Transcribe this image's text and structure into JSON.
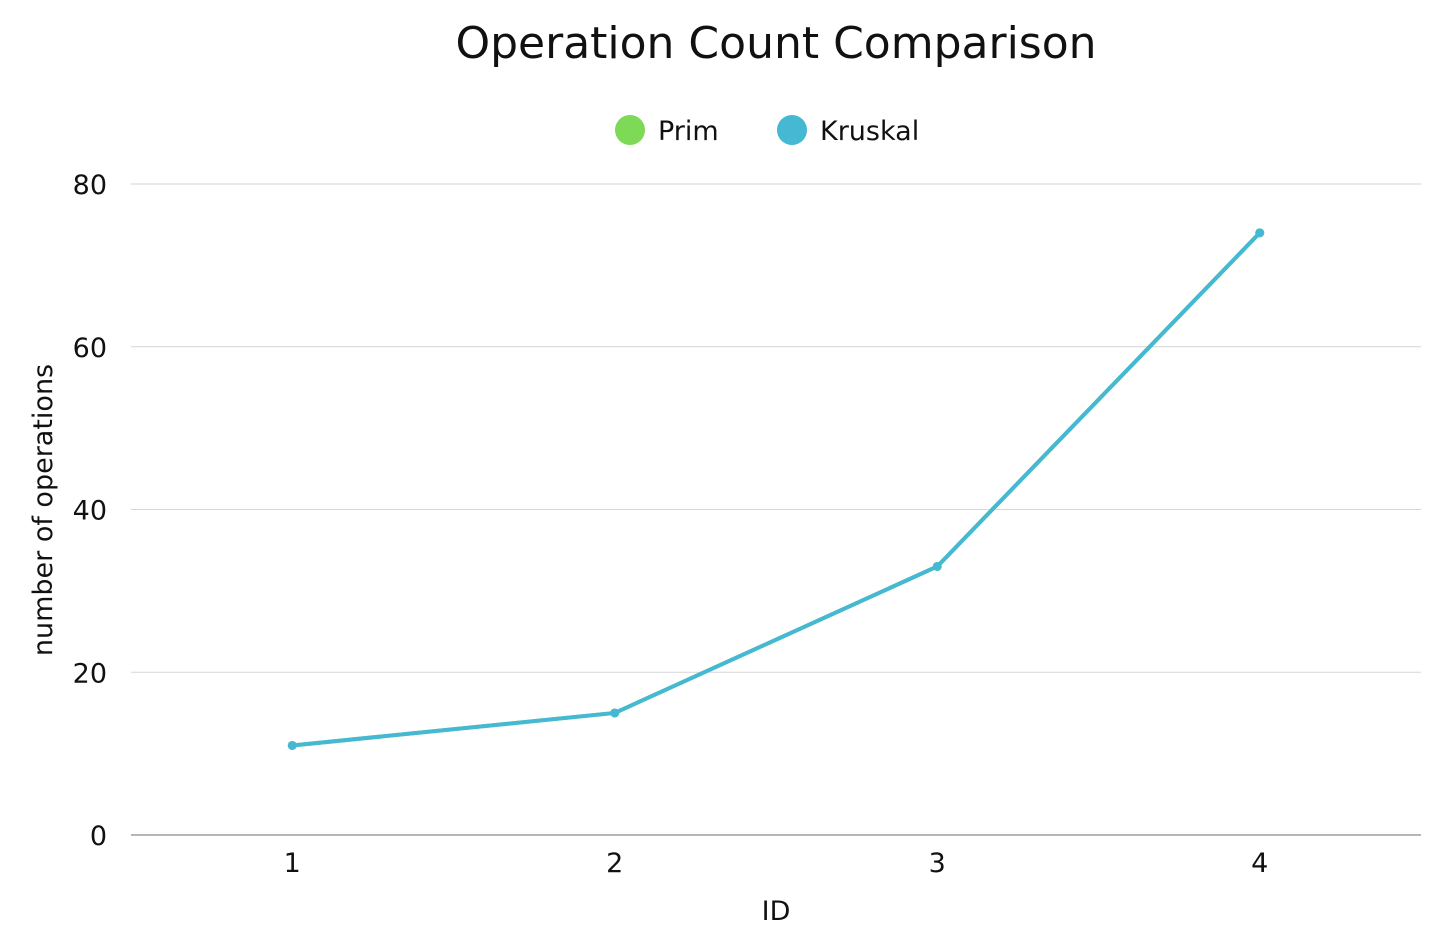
{
  "chart_data": {
    "type": "line",
    "title": "Operation Count Comparison",
    "xlabel": "ID",
    "ylabel": "number of operations",
    "categories": [
      "1",
      "2",
      "3",
      "4"
    ],
    "ylim": [
      0,
      80
    ],
    "yticks": [
      0,
      20,
      40,
      60,
      80
    ],
    "grid": true,
    "legend": "top-center",
    "series": [
      {
        "name": "Prim",
        "color": "#7ED957",
        "values": [
          11,
          15,
          33,
          74
        ]
      },
      {
        "name": "Kruskal",
        "color": "#45B8D3",
        "values": [
          11,
          15,
          33,
          74
        ]
      }
    ]
  }
}
